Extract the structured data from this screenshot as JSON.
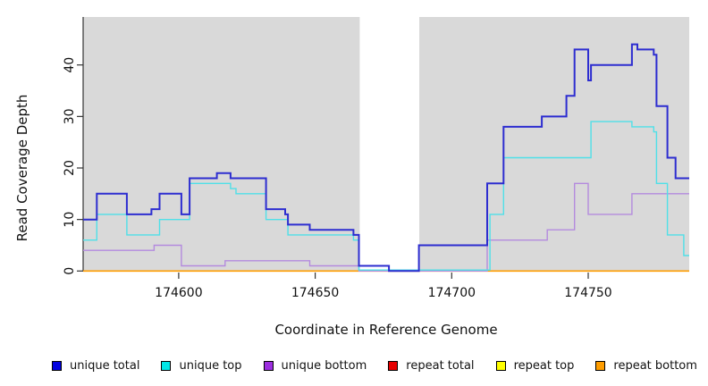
{
  "chart_data": {
    "type": "line",
    "subtype": "step",
    "xlabel": "Coordinate in Reference Genome",
    "ylabel": "Read Coverage Depth",
    "xlim": [
      174565,
      174787
    ],
    "ylim": [
      0,
      49.3
    ],
    "x_ticks": [
      174600,
      174650,
      174700,
      174750
    ],
    "y_ticks": [
      0,
      10,
      20,
      30,
      40
    ],
    "grid": false,
    "background": {
      "color": "#d9d9d9",
      "regions": [
        [
          174565,
          174666.3
        ],
        [
          174688.1,
          174787
        ]
      ]
    },
    "axis_color": "#333333",
    "text_color": "#111111",
    "series": [
      {
        "name": "unique total",
        "color": "#2d2dd0",
        "steps": [
          [
            174565,
            10
          ],
          [
            174570,
            15
          ],
          [
            174581,
            11
          ],
          [
            174590,
            12
          ],
          [
            174593,
            15
          ],
          [
            174601,
            11
          ],
          [
            174604,
            18
          ],
          [
            174614,
            19
          ],
          [
            174619,
            18
          ],
          [
            174632,
            12
          ],
          [
            174639,
            11
          ],
          [
            174640,
            9
          ],
          [
            174648,
            8
          ],
          [
            174664,
            7
          ],
          [
            174666,
            1
          ],
          [
            174677,
            0
          ],
          [
            174688,
            5
          ],
          [
            174713,
            17
          ],
          [
            174719,
            28
          ],
          [
            174733,
            30
          ],
          [
            174742,
            34
          ],
          [
            174745,
            43
          ],
          [
            174750,
            37
          ],
          [
            174751,
            40
          ],
          [
            174766,
            44
          ],
          [
            174768,
            43
          ],
          [
            174774,
            42
          ],
          [
            174775,
            32
          ],
          [
            174779,
            22
          ],
          [
            174782,
            18
          ],
          [
            174787,
            18
          ]
        ]
      },
      {
        "name": "unique top",
        "color": "#4fe0e8",
        "steps": [
          [
            174565,
            6
          ],
          [
            174570,
            11
          ],
          [
            174581,
            7
          ],
          [
            174593,
            10
          ],
          [
            174604,
            17
          ],
          [
            174619,
            16
          ],
          [
            174621,
            15
          ],
          [
            174632,
            10
          ],
          [
            174640,
            7
          ],
          [
            174664,
            6
          ],
          [
            174666,
            0
          ],
          [
            174714,
            11
          ],
          [
            174719,
            22
          ],
          [
            174751,
            29
          ],
          [
            174766,
            28
          ],
          [
            174774,
            27
          ],
          [
            174775,
            17
          ],
          [
            174779,
            7
          ],
          [
            174785,
            3
          ],
          [
            174787,
            3
          ]
        ]
      },
      {
        "name": "unique bottom",
        "color": "#b48ade",
        "steps": [
          [
            174565,
            4
          ],
          [
            174591,
            5
          ],
          [
            174601,
            1
          ],
          [
            174617,
            2
          ],
          [
            174648,
            1
          ],
          [
            174666,
            0
          ],
          [
            174713,
            6
          ],
          [
            174735,
            8
          ],
          [
            174745,
            17
          ],
          [
            174750,
            11
          ],
          [
            174766,
            15
          ],
          [
            174787,
            15
          ]
        ]
      },
      {
        "name": "repeat total",
        "color": "#dd0000",
        "steps": [
          [
            174565,
            0
          ],
          [
            174787,
            0
          ]
        ]
      },
      {
        "name": "repeat top",
        "color": "#ffff00",
        "steps": [
          [
            174565,
            0
          ],
          [
            174787,
            0
          ]
        ]
      },
      {
        "name": "repeat bottom",
        "color": "#ff9d00",
        "steps": [
          [
            174565,
            0
          ],
          [
            174787,
            0
          ]
        ]
      }
    ],
    "legend": [
      {
        "label": "unique total",
        "color": "#0000e0"
      },
      {
        "label": "unique top",
        "color": "#00e6e6"
      },
      {
        "label": "unique bottom",
        "color": "#9d2fe0"
      },
      {
        "label": "repeat total",
        "color": "#e60000"
      },
      {
        "label": "repeat top",
        "color": "#ffff00"
      },
      {
        "label": "repeat bottom",
        "color": "#ff9d00"
      }
    ]
  }
}
